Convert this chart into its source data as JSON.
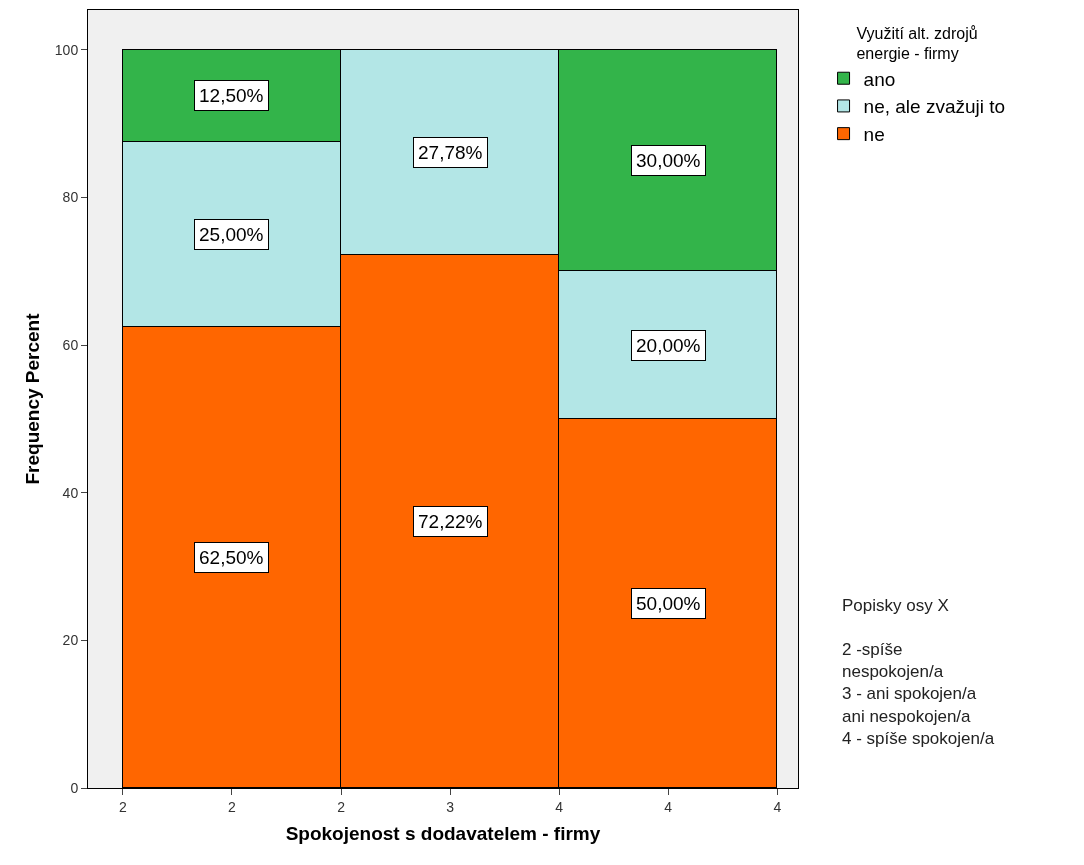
{
  "chart_data": {
    "type": "bar",
    "stacked": true,
    "xlabel": "Spokojenost s dodavatelem - firmy",
    "ylabel": "Frequency Percent",
    "legend_title": "Využití alt. zdrojů\nenergie - firmy",
    "legend": "top right",
    "categories": [
      "2",
      "2",
      "2",
      "3",
      "4",
      "4",
      "4"
    ],
    "ylim": [
      0,
      105.4
    ],
    "yticks": [
      0,
      20,
      40,
      60,
      80,
      100
    ],
    "series": [
      {
        "name": "ne",
        "color": "#ff6600",
        "values": [
          null,
          62.5,
          null,
          72.22,
          null,
          50,
          null
        ],
        "value_labels": [
          null,
          "62,50%",
          null,
          "72,22%",
          null,
          "50,00%",
          null
        ]
      },
      {
        "name": "ne, ale zvažuji to",
        "color": "#b3e6e6",
        "values": [
          null,
          25,
          null,
          27.78,
          null,
          20,
          null
        ],
        "value_labels": [
          null,
          "25,00%",
          null,
          "27,78%",
          null,
          "20,00%",
          null
        ]
      },
      {
        "name": "ano",
        "color": "#33b44a",
        "values": [
          null,
          12.5,
          null,
          null,
          null,
          30,
          null
        ],
        "value_labels": [
          null,
          "12,50%",
          null,
          null,
          null,
          "30,00%",
          null
        ]
      }
    ],
    "annotations": [
      "Popisky osy X\n\n2 -spíše\nnespokojen/a\n3 - ani spokojen/a\nani nespokojen/a\n4 - spíše spokojen/a"
    ]
  }
}
